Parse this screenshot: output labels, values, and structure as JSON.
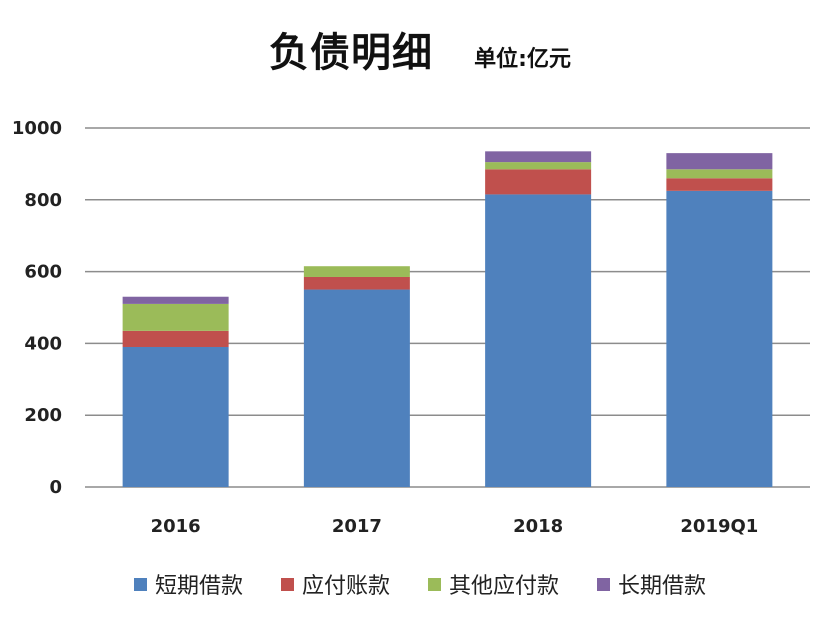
{
  "chart_data": {
    "type": "bar",
    "stacked": true,
    "title": "负债明细",
    "subtitle": "单位:亿元",
    "categories": [
      "2016",
      "2017",
      "2018",
      "2019Q1"
    ],
    "ylim": [
      0,
      1000
    ],
    "yticks": [
      0,
      200,
      400,
      600,
      800,
      1000
    ],
    "grid": true,
    "legend_position": "bottom",
    "series": [
      {
        "name": "短期借款",
        "color": "#4F81BD",
        "values": [
          390,
          550,
          815,
          825
        ]
      },
      {
        "name": "应付账款",
        "color": "#C0504D",
        "values": [
          45,
          35,
          70,
          35
        ]
      },
      {
        "name": "其他应付款",
        "color": "#9BBB59",
        "values": [
          75,
          30,
          20,
          25
        ]
      },
      {
        "name": "长期借款",
        "color": "#8064A2",
        "values": [
          20,
          0,
          30,
          45
        ]
      }
    ]
  }
}
